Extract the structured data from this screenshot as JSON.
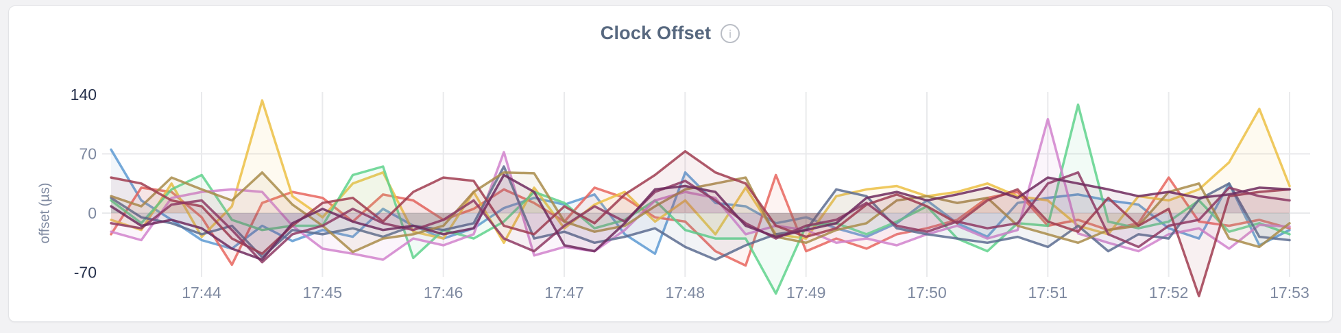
{
  "header": {
    "title": "Clock Offset",
    "info_glyph": "i"
  },
  "colors": {
    "page_bg": "#f2f2f4",
    "card_border": "#e2e3e6",
    "title": "#57687f",
    "axis_strong": "#25304b",
    "axis_muted": "#7e89a0",
    "grid": "#e9eaec",
    "info_icon": "#b9bdc5"
  },
  "chart_data": {
    "type": "line",
    "title": "Clock Offset",
    "xlabel": "",
    "ylabel": "offset (µs)",
    "legend": "none",
    "grid": "on",
    "ylim": [
      -75,
      145
    ],
    "y_ticks": [
      {
        "value": 140,
        "label": "140",
        "emphasis": true,
        "gridline": false
      },
      {
        "value": 70,
        "label": "70",
        "emphasis": false,
        "gridline": true
      },
      {
        "value": 0,
        "label": "0",
        "emphasis": false,
        "gridline": true
      },
      {
        "value": -70,
        "label": "-70",
        "emphasis": true,
        "gridline": false
      }
    ],
    "x_tick_labels": [
      "17:44",
      "17:45",
      "17:46",
      "17:47",
      "17:48",
      "17:49",
      "17:50",
      "17:51",
      "17:52",
      "17:53"
    ],
    "first_point_time": "17:43:15",
    "interval_seconds": 15,
    "points_per_series": 40,
    "series": [
      {
        "name": "blue",
        "color": "#5d9ad2",
        "values": [
          75,
          15,
          -8,
          -32,
          -42,
          -15,
          -33,
          -20,
          -28,
          5,
          -15,
          -30,
          -18,
          6,
          18,
          10,
          22,
          -25,
          -48,
          48,
          12,
          8,
          -12,
          -5,
          -18,
          -28,
          -12,
          15,
          -12,
          -28,
          12,
          18,
          22,
          15,
          10,
          -18,
          -30,
          35,
          -38,
          -20
        ]
      },
      {
        "name": "salmon",
        "color": "#e8655e",
        "values": [
          -25,
          30,
          25,
          -5,
          -61,
          12,
          25,
          18,
          -10,
          22,
          15,
          -8,
          5,
          28,
          12,
          -10,
          30,
          18,
          -5,
          -10,
          -45,
          -62,
          45,
          -45,
          -30,
          -42,
          -25,
          -18,
          -8,
          18,
          25,
          -15,
          -8,
          -20,
          -12,
          42,
          -10,
          -15,
          -8,
          -18
        ]
      },
      {
        "name": "gold",
        "color": "#ecc044",
        "values": [
          -8,
          -20,
          35,
          -28,
          8,
          133,
          20,
          -5,
          35,
          48,
          -22,
          -30,
          25,
          -35,
          30,
          -18,
          10,
          25,
          -10,
          15,
          -25,
          30,
          -25,
          -30,
          20,
          28,
          32,
          20,
          25,
          35,
          20,
          15,
          -15,
          -25,
          20,
          15,
          28,
          60,
          123,
          32
        ]
      },
      {
        "name": "green",
        "color": "#5fd28c",
        "values": [
          15,
          -12,
          28,
          45,
          -8,
          -20,
          -15,
          -15,
          45,
          55,
          -53,
          -20,
          -30,
          -10,
          25,
          12,
          -18,
          -8,
          15,
          -20,
          -30,
          -30,
          -95,
          -15,
          -12,
          -25,
          -10,
          8,
          -30,
          -45,
          -12,
          -15,
          128,
          -10,
          -18,
          -10,
          15,
          -22,
          -12,
          -25
        ]
      },
      {
        "name": "orchid",
        "color": "#d183cd",
        "values": [
          -22,
          -32,
          18,
          25,
          28,
          25,
          -15,
          -42,
          -48,
          -55,
          -30,
          -38,
          -25,
          72,
          -50,
          -40,
          -45,
          -20,
          15,
          25,
          18,
          -25,
          -15,
          -20,
          -35,
          -30,
          -38,
          -25,
          -15,
          -30,
          -20,
          111,
          -24,
          -35,
          -45,
          -25,
          -18,
          -42,
          -14,
          -16
        ]
      },
      {
        "name": "slate",
        "color": "#5c6c90",
        "values": [
          18,
          -5,
          -12,
          -25,
          -15,
          -52,
          -20,
          -25,
          -18,
          -28,
          -15,
          -20,
          -12,
          55,
          -30,
          -22,
          -35,
          -28,
          -18,
          -40,
          -55,
          -38,
          -25,
          -20,
          28,
          20,
          -18,
          -25,
          -30,
          -35,
          -28,
          -40,
          -15,
          -45,
          -25,
          -30,
          16,
          35,
          -28,
          -32
        ]
      },
      {
        "name": "khaki",
        "color": "#a98c4a",
        "values": [
          20,
          8,
          42,
          28,
          15,
          48,
          10,
          -15,
          -46,
          -30,
          -25,
          -15,
          25,
          48,
          47,
          -10,
          -22,
          -15,
          8,
          28,
          35,
          42,
          -28,
          -35,
          -20,
          -12,
          15,
          20,
          12,
          18,
          -15,
          -25,
          -35,
          -20,
          -15,
          25,
          35,
          -30,
          -40,
          -12
        ]
      },
      {
        "name": "wine",
        "color": "#a03c50",
        "values": [
          42,
          35,
          15,
          8,
          -30,
          -48,
          -15,
          12,
          18,
          -10,
          25,
          42,
          38,
          -15,
          -25,
          8,
          -12,
          22,
          45,
          73,
          48,
          35,
          -15,
          -28,
          -18,
          10,
          22,
          8,
          -12,
          15,
          28,
          -10,
          -22,
          18,
          -15,
          5,
          -98,
          20,
          25,
          28
        ]
      },
      {
        "name": "berry",
        "color": "#8e3a64",
        "values": [
          -12,
          -18,
          10,
          15,
          -20,
          -58,
          -25,
          -15,
          5,
          -12,
          -20,
          -8,
          15,
          -30,
          -45,
          -15,
          8,
          -10,
          25,
          38,
          15,
          -12,
          -30,
          -15,
          -8,
          12,
          -15,
          -22,
          -10,
          -18,
          -12,
          35,
          48,
          -25,
          -40,
          -15,
          -8,
          30,
          20,
          15
        ]
      },
      {
        "name": "plum",
        "color": "#6f2a5e",
        "values": [
          8,
          -15,
          -8,
          -18,
          -42,
          -55,
          -12,
          5,
          -10,
          -20,
          -15,
          -25,
          -18,
          45,
          25,
          -38,
          -45,
          -12,
          28,
          32,
          25,
          -15,
          -28,
          -20,
          -12,
          18,
          25,
          15,
          22,
          30,
          18,
          42,
          35,
          28,
          20,
          25,
          18,
          22,
          30,
          28
        ]
      }
    ]
  }
}
